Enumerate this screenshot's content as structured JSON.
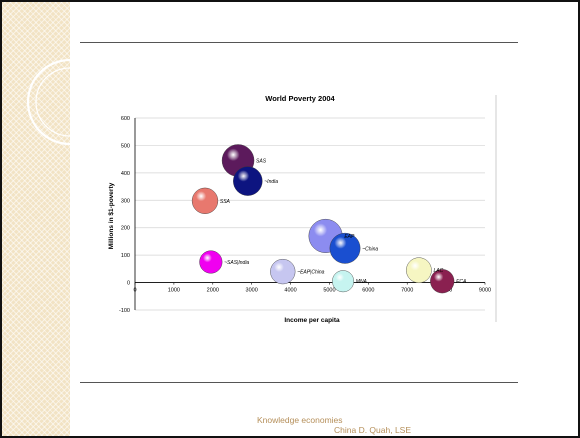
{
  "chart_data": {
    "type": "scatter",
    "subtype": "bubble",
    "title": "World Poverty 2004",
    "xlabel": "Income per capita",
    "ylabel": "Millions in $1-poverty",
    "xlim": [
      0,
      9000
    ],
    "ylim": [
      -100,
      600
    ],
    "xticks": [
      0,
      1000,
      2000,
      3000,
      4000,
      5000,
      6000,
      7000,
      8000,
      9000
    ],
    "yticks": [
      -100,
      0,
      100,
      200,
      300,
      400,
      500,
      600
    ],
    "grid": "horizontal",
    "points": [
      {
        "label": "SAS",
        "x": 2650,
        "y": 445,
        "size": 1.0,
        "color": "#5c1a5c"
      },
      {
        "label": "~India",
        "x": 2900,
        "y": 370,
        "size": 0.82,
        "color": "#0d1480"
      },
      {
        "label": "SSA",
        "x": 1800,
        "y": 298,
        "size": 0.65,
        "color": "#e8786e"
      },
      {
        "label": "EAP",
        "x": 4900,
        "y": 170,
        "size": 1.1,
        "color": "#8c8cf0"
      },
      {
        "label": "~China",
        "x": 5400,
        "y": 125,
        "size": 0.9,
        "color": "#1a4fd0"
      },
      {
        "label": "~SAS|India",
        "x": 1950,
        "y": 75,
        "size": 0.5,
        "color": "#f000f0"
      },
      {
        "label": "~EAP|China",
        "x": 3800,
        "y": 40,
        "size": 0.6,
        "color": "#c6c6f0"
      },
      {
        "label": "MNA",
        "x": 5350,
        "y": 5,
        "size": 0.45,
        "color": "#c6f4f0"
      },
      {
        "label": "LAC",
        "x": 7300,
        "y": 45,
        "size": 0.62,
        "color": "#f6f6c2"
      },
      {
        "label": "ECA",
        "x": 7900,
        "y": 5,
        "size": 0.55,
        "color": "#8a2050"
      }
    ]
  },
  "footer": {
    "line1": "Knowledge economies",
    "line2": "China    D. Quah, LSE"
  }
}
